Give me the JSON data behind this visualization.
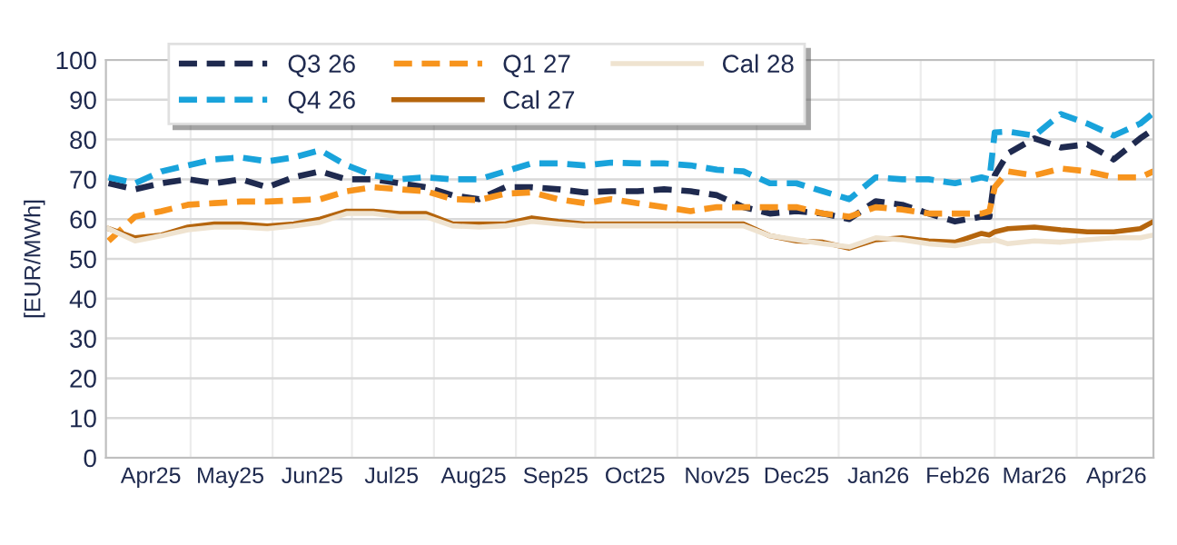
{
  "chart_data": {
    "type": "line",
    "ylabel": "[EUR/MWh]",
    "x": [
      "2025-03-31",
      "2025-04-10",
      "2025-04-20",
      "2025-04-30",
      "2025-05-10",
      "2025-05-20",
      "2025-05-30",
      "2025-06-09",
      "2025-06-19",
      "2025-06-29",
      "2025-07-09",
      "2025-07-19",
      "2025-07-29",
      "2025-08-08",
      "2025-08-18",
      "2025-08-28",
      "2025-09-07",
      "2025-09-17",
      "2025-09-27",
      "2025-10-07",
      "2025-10-17",
      "2025-10-27",
      "2025-11-06",
      "2025-11-16",
      "2025-11-26",
      "2025-12-06",
      "2025-12-16",
      "2025-12-26",
      "2026-01-05",
      "2026-01-15",
      "2026-01-25",
      "2026-02-04",
      "2026-02-14",
      "2026-02-24",
      "2026-02-27",
      "2026-03-01",
      "2026-03-06",
      "2026-03-16",
      "2026-03-26",
      "2026-04-05",
      "2026-04-15",
      "2026-04-25",
      "2026-04-30"
    ],
    "series": [
      {
        "name": "Q3 26",
        "color": "#1f2a4f",
        "line_style": "dashed",
        "values": [
          69,
          67.5,
          69,
          70,
          69,
          70,
          68,
          70.5,
          72,
          70,
          70,
          69,
          68,
          66,
          65,
          68,
          68,
          67.5,
          66.7,
          67,
          67,
          67.5,
          67,
          66,
          63,
          61.4,
          62,
          61.4,
          60,
          64.5,
          63.6,
          61.4,
          59.4,
          60.6,
          60.6,
          71,
          76.5,
          80.3,
          78,
          78.8,
          75,
          80.3,
          82.6
        ]
      },
      {
        "name": "Q4 26",
        "color": "#19a3db",
        "line_style": "dashed",
        "values": [
          70.5,
          69,
          72,
          73.5,
          75,
          75.5,
          74.5,
          75.5,
          77.3,
          73.5,
          71,
          70,
          70.5,
          70,
          70,
          72,
          74,
          74,
          73.5,
          74.2,
          74,
          74,
          73.5,
          72.4,
          72,
          69,
          69,
          67,
          65,
          70.5,
          70,
          70,
          69,
          70.5,
          70,
          81.8,
          82,
          81,
          86.4,
          84,
          81,
          84,
          86.7
        ]
      },
      {
        "name": "Q1 27",
        "color": "#f7941d",
        "line_style": "dashed",
        "values": [
          54.5,
          60.6,
          62,
          63.6,
          64,
          64.4,
          64.4,
          64.7,
          65,
          67,
          68,
          67.5,
          67,
          65,
          64.8,
          66.4,
          66.7,
          65,
          64,
          65,
          64,
          63,
          62,
          63,
          63,
          63,
          63,
          61.4,
          60.6,
          63,
          62.4,
          61.4,
          61.4,
          61.4,
          62,
          68,
          72,
          71,
          72.7,
          72,
          70.5,
          70.5,
          72
        ]
      },
      {
        "name": "Cal 27",
        "color": "#b5650d",
        "line_style": "solid",
        "values": [
          57.6,
          55.3,
          56,
          58,
          58.8,
          58.8,
          58.3,
          58.8,
          60,
          62,
          62,
          61.4,
          61.4,
          58.8,
          58.8,
          58.8,
          60.3,
          59.4,
          58.8,
          58.8,
          58.8,
          58.8,
          58.8,
          58.8,
          58.8,
          55.8,
          54.5,
          54.2,
          52.7,
          54.8,
          55.3,
          54.5,
          54.2,
          56.4,
          56,
          56.8,
          57.6,
          58,
          57.3,
          56.8,
          56.8,
          57.6,
          59.4
        ]
      },
      {
        "name": "Cal 28",
        "color": "#efe3d0",
        "line_style": "solid",
        "values": [
          57.6,
          54.5,
          55.8,
          57.3,
          58,
          58,
          57.6,
          58.3,
          59.2,
          61.4,
          61.4,
          60.6,
          60.6,
          58.3,
          58,
          58.3,
          59.4,
          58.8,
          58.3,
          58.3,
          58.3,
          58.3,
          58.3,
          58.3,
          58.3,
          55.8,
          54.8,
          53.8,
          53,
          55.3,
          54.8,
          53.8,
          53.3,
          54.5,
          54.5,
          54.8,
          53.8,
          54.5,
          54.2,
          54.8,
          55.3,
          55.3,
          56
        ]
      }
    ],
    "xlim": [
      "2025-03-30",
      "2026-04-30"
    ],
    "xticks": [
      {
        "value": "2025-04-16",
        "label": "Apr25"
      },
      {
        "value": "2025-05-01",
        "label": null
      },
      {
        "value": "2025-05-16",
        "label": "May25"
      },
      {
        "value": "2025-06-01",
        "label": null
      },
      {
        "value": "2025-06-16",
        "label": "Jun25"
      },
      {
        "value": "2025-07-01",
        "label": null
      },
      {
        "value": "2025-07-16",
        "label": "Jul25"
      },
      {
        "value": "2025-08-01",
        "label": null
      },
      {
        "value": "2025-08-16",
        "label": "Aug25"
      },
      {
        "value": "2025-09-01",
        "label": null
      },
      {
        "value": "2025-09-16",
        "label": "Sep25"
      },
      {
        "value": "2025-10-01",
        "label": null
      },
      {
        "value": "2025-10-16",
        "label": "Oct25"
      },
      {
        "value": "2025-11-01",
        "label": null
      },
      {
        "value": "2025-11-16",
        "label": "Nov25"
      },
      {
        "value": "2025-12-01",
        "label": null
      },
      {
        "value": "2025-12-16",
        "label": "Dec25"
      },
      {
        "value": "2026-01-01",
        "label": null
      },
      {
        "value": "2026-01-16",
        "label": "Jan26"
      },
      {
        "value": "2026-02-01",
        "label": null
      },
      {
        "value": "2026-02-15",
        "label": "Feb26"
      },
      {
        "value": "2026-03-01",
        "label": null
      },
      {
        "value": "2026-03-16",
        "label": "Mar26"
      },
      {
        "value": "2026-04-01",
        "label": null
      },
      {
        "value": "2026-04-16",
        "label": "Apr26"
      }
    ],
    "ylim": [
      0,
      100
    ],
    "yticks": [
      0,
      10,
      20,
      30,
      40,
      50,
      60,
      70,
      80,
      90,
      100
    ],
    "grid": true,
    "legend": "top left",
    "marker": "none"
  }
}
